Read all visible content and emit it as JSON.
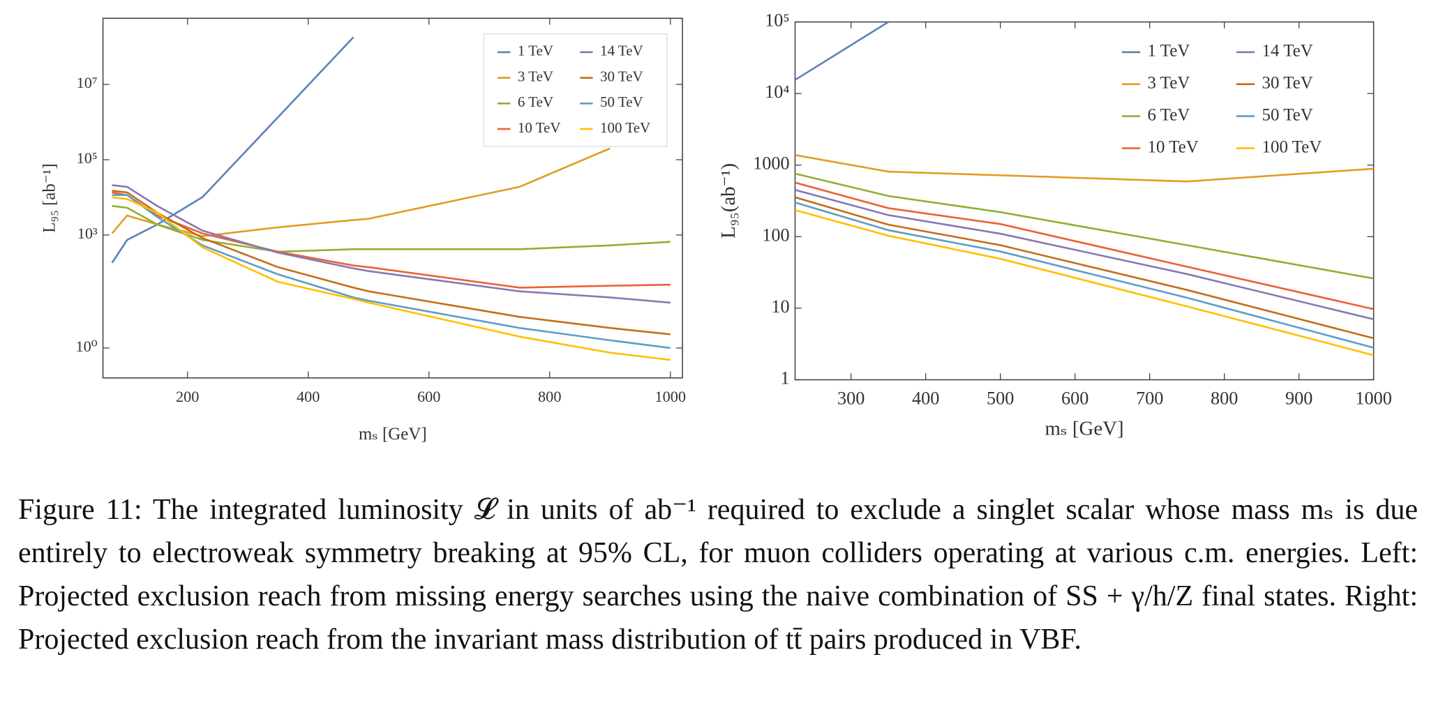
{
  "chart_data": [
    {
      "type": "line",
      "log_y": true,
      "legend": "upper right",
      "x_label": "mₛ [GeV]",
      "y_label": "L₉₅ [ab⁻¹]",
      "x": [
        75,
        100,
        150,
        225,
        350,
        475,
        500,
        750,
        900,
        1000
      ],
      "xlim": [
        60,
        1020
      ],
      "xticks": [
        200,
        400,
        600,
        800,
        1000
      ],
      "ylim": [
        0.16,
        570000000
      ],
      "yticks": [
        {
          "value": 1,
          "label": "10⁰"
        },
        {
          "value": 1000,
          "label": "10³"
        },
        {
          "value": 100000,
          "label": "10⁵"
        },
        {
          "value": 10000000,
          "label": "10⁷"
        }
      ],
      "series": [
        {
          "name": "1 TeV",
          "color": "#5E81B5",
          "values": [
            182,
            741,
            1900,
            10200,
            1350000,
            180000000,
            null,
            null,
            null,
            null
          ]
        },
        {
          "name": "3 TeV",
          "color": "#E19C24",
          "values": [
            1100,
            3300,
            1900,
            930,
            1600,
            2500,
            2700,
            19000,
            200000,
            null
          ]
        },
        {
          "name": "6 TeV",
          "color": "#8FB032",
          "values": [
            5900,
            5300,
            1900,
            740,
            360,
            420,
            420,
            420,
            530,
            660
          ]
        },
        {
          "name": "10 TeV",
          "color": "#EB6235",
          "values": [
            13500,
            11500,
            3300,
            1100,
            360,
            155,
            140,
            40,
            45,
            48
          ]
        },
        {
          "name": "14 TeV",
          "color": "#8778B3",
          "values": [
            21000,
            19000,
            5900,
            1300,
            340,
            130,
            110,
            32,
            22,
            16
          ]
        },
        {
          "name": "30 TeV",
          "color": "#C56E1A",
          "values": [
            15000,
            13500,
            3900,
            830,
            140,
            40,
            32,
            6.7,
            3.4,
            2.3
          ]
        },
        {
          "name": "50 TeV",
          "color": "#5D9EC7",
          "values": [
            11500,
            11500,
            3000,
            530,
            90,
            22,
            18,
            3.4,
            1.6,
            1
          ]
        },
        {
          "name": "100 TeV",
          "color": "#FFBF00",
          "values": [
            10000,
            9000,
            3900,
            470,
            57,
            20,
            16,
            2,
            0.75,
            0.48
          ]
        }
      ]
    },
    {
      "type": "line",
      "log_y": true,
      "legend": "upper right",
      "x_label": "mₛ [GeV]",
      "y_label": "L₉₅(ab⁻¹)",
      "x": [
        225,
        350,
        500,
        750,
        1000
      ],
      "xlim": [
        225,
        1000
      ],
      "xticks": [
        300,
        400,
        500,
        600,
        700,
        800,
        900,
        1000
      ],
      "ylim": [
        1,
        100000
      ],
      "yticks": [
        1,
        10,
        100,
        1000,
        {
          "value": 10000,
          "label": "10⁴"
        },
        {
          "value": 100000,
          "label": "10⁵"
        }
      ],
      "series": [
        {
          "name": "1 TeV",
          "color": "#5E81B5",
          "values": [
            15500,
            100000,
            null,
            null,
            null
          ]
        },
        {
          "name": "3 TeV",
          "color": "#E19C24",
          "values": [
            1380,
            810,
            720,
            590,
            890
          ]
        },
        {
          "name": "6 TeV",
          "color": "#8FB032",
          "values": [
            760,
            370,
            220,
            76,
            26
          ]
        },
        {
          "name": "10 TeV",
          "color": "#EB6235",
          "values": [
            570,
            250,
            150,
            38,
            9.7
          ]
        },
        {
          "name": "14 TeV",
          "color": "#8778B3",
          "values": [
            450,
            200,
            110,
            30,
            7
          ]
        },
        {
          "name": "30 TeV",
          "color": "#C56E1A",
          "values": [
            355,
            147,
            76,
            18,
            3.8
          ]
        },
        {
          "name": "50 TeV",
          "color": "#5D9EC7",
          "values": [
            300,
            123,
            62,
            14,
            2.8
          ]
        },
        {
          "name": "100 TeV",
          "color": "#FFBF00",
          "values": [
            235,
            103,
            49,
            10.6,
            2.2
          ]
        }
      ]
    }
  ],
  "caption": "Figure 11: The integrated luminosity 𝓛 in units of ab⁻¹ required to exclude a singlet scalar whose mass mₛ is due entirely to electroweak symmetry breaking at 95% CL, for muon colliders operating at various c.m. energies. Left: Projected exclusion reach from missing energy searches using the naive combination of SS + γ/h/Z final states. Right: Projected exclusion reach from the invariant mass distribution of tt̄ pairs produced in VBF."
}
